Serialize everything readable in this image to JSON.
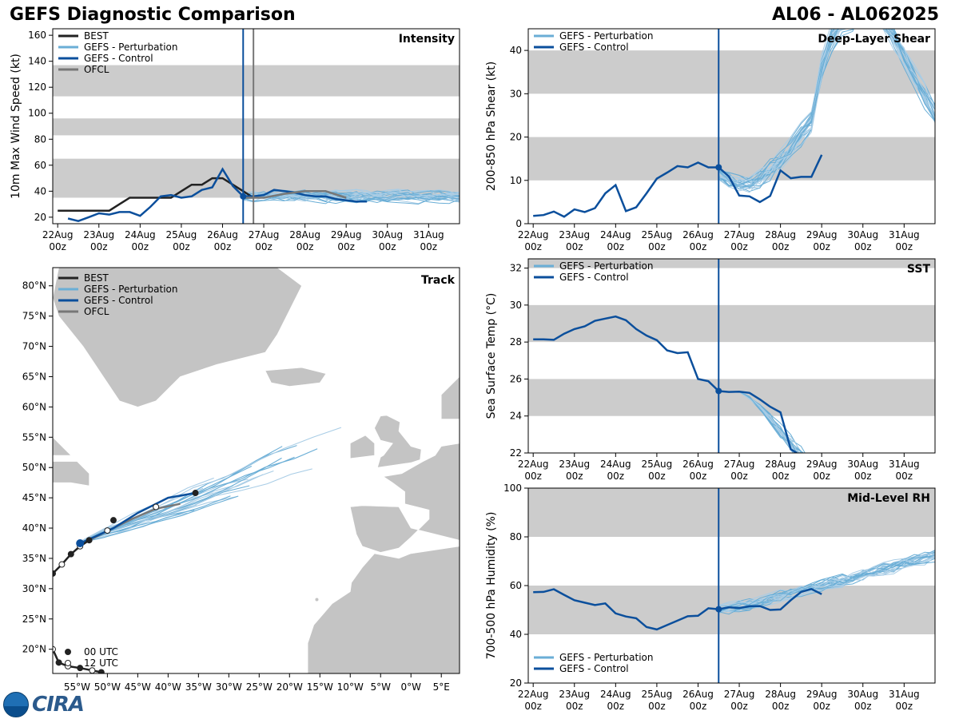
{
  "header": {
    "title": "GEFS Diagnostic Comparison",
    "storm_id": "AL06 - AL062025"
  },
  "logo": {
    "text": "CIRA",
    "noaa_icon": "noaa-logo-icon"
  },
  "colors": {
    "best": "#222222",
    "ensemble": "#6aaed6",
    "ensemble_light": "#a9cde6",
    "control": "#0b4f9c",
    "ofcl": "#777777",
    "band": "#cccccc",
    "land": "#c4c4c4"
  },
  "chart_data": [
    {
      "id": "intensity",
      "type": "line",
      "title": "Intensity",
      "ylabel": "10m Max Wind Speed (kt)",
      "ylim": [
        15,
        165
      ],
      "yticks": [
        20,
        40,
        60,
        80,
        100,
        120,
        140,
        160
      ],
      "bands": [
        [
          35,
          65
        ],
        [
          83,
          96
        ],
        [
          113,
          137
        ]
      ],
      "xticks": [
        "22Aug\n00z",
        "23Aug\n00z",
        "24Aug\n00z",
        "25Aug\n00z",
        "26Aug\n00z",
        "27Aug\n00z",
        "28Aug\n00z",
        "29Aug\n00z",
        "30Aug\n00z",
        "31Aug\n00z"
      ],
      "xlim_days": [
        -0.12,
        9.75
      ],
      "vlines": [
        {
          "x": 4.5,
          "color": "#0b4f9c"
        },
        {
          "x": 4.75,
          "color": "#777777"
        }
      ],
      "legend": [
        "BEST",
        "GEFS - Perturbation",
        "GEFS - Control",
        "OFCL"
      ],
      "series": [
        {
          "name": "BEST",
          "values": [
            [
              0,
              25
            ],
            [
              0.25,
              25
            ],
            [
              0.5,
              25
            ],
            [
              0.75,
              25
            ],
            [
              1,
              25
            ],
            [
              1.25,
              25
            ],
            [
              1.5,
              30
            ],
            [
              1.75,
              35
            ],
            [
              2,
              35
            ],
            [
              2.25,
              35
            ],
            [
              2.5,
              35
            ],
            [
              2.75,
              35
            ],
            [
              3,
              40
            ],
            [
              3.25,
              45
            ],
            [
              3.5,
              45
            ],
            [
              3.75,
              50
            ],
            [
              4,
              50
            ],
            [
              4.25,
              45
            ],
            [
              4.5,
              40
            ],
            [
              4.75,
              35
            ]
          ]
        },
        {
          "name": "GEFS - Control",
          "values": [
            [
              0.25,
              19
            ],
            [
              0.5,
              17
            ],
            [
              0.75,
              20
            ],
            [
              1,
              23
            ],
            [
              1.25,
              22
            ],
            [
              1.5,
              24
            ],
            [
              1.75,
              24
            ],
            [
              2,
              21
            ],
            [
              2.25,
              28
            ],
            [
              2.5,
              36
            ],
            [
              2.75,
              37
            ],
            [
              3,
              35
            ],
            [
              3.25,
              36
            ],
            [
              3.5,
              41
            ],
            [
              3.75,
              43
            ],
            [
              4,
              57
            ],
            [
              4.25,
              44
            ],
            [
              4.5,
              36
            ],
            [
              4.75,
              36
            ],
            [
              5,
              37
            ],
            [
              5.25,
              41
            ],
            [
              5.5,
              40
            ],
            [
              5.75,
              39
            ],
            [
              6,
              37
            ],
            [
              6.25,
              36
            ],
            [
              6.5,
              36
            ],
            [
              6.75,
              34
            ],
            [
              7,
              33
            ],
            [
              7.25,
              32
            ],
            [
              7.5,
              32
            ]
          ]
        },
        {
          "name": "OFCL",
          "values": [
            [
              4.5,
              35
            ],
            [
              4.75,
              35
            ],
            [
              5,
              35
            ],
            [
              5.5,
              38
            ],
            [
              6,
              40
            ],
            [
              6.5,
              40
            ],
            [
              7,
              35
            ]
          ]
        }
      ]
    },
    {
      "id": "shear",
      "type": "line",
      "title": "Deep-Layer Shear",
      "ylabel": "200-850 hPa Shear (kt)",
      "ylim": [
        0,
        45
      ],
      "yticks": [
        0,
        10,
        20,
        30,
        40
      ],
      "bands": [
        [
          10,
          20
        ],
        [
          30,
          40
        ]
      ],
      "xlim_days": [
        -0.12,
        9.75
      ],
      "legend": [
        "GEFS - Perturbation",
        "GEFS - Control"
      ],
      "series": [
        {
          "name": "GEFS - Control",
          "values": [
            [
              0,
              1.8
            ],
            [
              0.25,
              2
            ],
            [
              0.5,
              2.8
            ],
            [
              0.75,
              1.6
            ],
            [
              1,
              3.3
            ],
            [
              1.25,
              2.7
            ],
            [
              1.5,
              3.6
            ],
            [
              1.75,
              7
            ],
            [
              2,
              8.9
            ],
            [
              2.25,
              2.9
            ],
            [
              2.5,
              3.8
            ],
            [
              2.75,
              7
            ],
            [
              3,
              10.4
            ],
            [
              3.25,
              11.8
            ],
            [
              3.5,
              13.3
            ],
            [
              3.75,
              13
            ],
            [
              4,
              14.1
            ],
            [
              4.25,
              13
            ],
            [
              4.5,
              13
            ],
            [
              4.75,
              10.9
            ],
            [
              5,
              6.5
            ],
            [
              5.25,
              6.3
            ],
            [
              5.5,
              5
            ],
            [
              5.75,
              6.4
            ],
            [
              6,
              12.3
            ],
            [
              6.25,
              10.5
            ],
            [
              6.5,
              10.8
            ],
            [
              6.75,
              10.8
            ],
            [
              7,
              15.9
            ]
          ]
        }
      ]
    },
    {
      "id": "sst",
      "type": "line",
      "title": "SST",
      "ylabel": "Sea Surface Temp (°C)",
      "ylim": [
        22,
        32.5
      ],
      "yticks": [
        22,
        24,
        26,
        28,
        30,
        32
      ],
      "bands": [
        [
          24,
          26
        ],
        [
          28,
          30
        ],
        [
          32,
          33
        ]
      ],
      "xlim_days": [
        -0.12,
        9.75
      ],
      "legend": [
        "GEFS - Perturbation",
        "GEFS - Control"
      ],
      "series": [
        {
          "name": "GEFS - Control",
          "values": [
            [
              0,
              28.15
            ],
            [
              0.25,
              28.15
            ],
            [
              0.5,
              28.12
            ],
            [
              0.75,
              28.45
            ],
            [
              1,
              28.7
            ],
            [
              1.25,
              28.85
            ],
            [
              1.5,
              29.15
            ],
            [
              1.75,
              29.27
            ],
            [
              2,
              29.38
            ],
            [
              2.25,
              29.18
            ],
            [
              2.5,
              28.7
            ],
            [
              2.75,
              28.35
            ],
            [
              3,
              28.1
            ],
            [
              3.25,
              27.55
            ],
            [
              3.5,
              27.4
            ],
            [
              3.75,
              27.45
            ],
            [
              4,
              26
            ],
            [
              4.25,
              25.88
            ],
            [
              4.5,
              25.35
            ],
            [
              4.75,
              25.3
            ],
            [
              5,
              25.32
            ],
            [
              5.25,
              25.25
            ],
            [
              5.5,
              24.9
            ],
            [
              5.75,
              24.5
            ],
            [
              6,
              24.2
            ],
            [
              6.25,
              22.2
            ],
            [
              6.4,
              22
            ]
          ]
        }
      ]
    },
    {
      "id": "rh",
      "type": "line",
      "title": "Mid-Level RH",
      "ylabel": "700-500 hPa Humidity (%)",
      "ylim": [
        20,
        100
      ],
      "yticks": [
        20,
        40,
        60,
        80,
        100
      ],
      "bands": [
        [
          40,
          60
        ],
        [
          80,
          100
        ]
      ],
      "xlim_days": [
        -0.12,
        9.75
      ],
      "legend": [
        "GEFS - Perturbation",
        "GEFS - Control"
      ],
      "series": [
        {
          "name": "GEFS - Control",
          "values": [
            [
              0,
              57.3
            ],
            [
              0.25,
              57.4
            ],
            [
              0.5,
              58.5
            ],
            [
              0.75,
              56.2
            ],
            [
              1,
              54
            ],
            [
              1.25,
              53
            ],
            [
              1.5,
              52
            ],
            [
              1.75,
              52.7
            ],
            [
              2,
              48.6
            ],
            [
              2.25,
              47.3
            ],
            [
              2.5,
              46.6
            ],
            [
              2.75,
              43
            ],
            [
              3,
              42
            ],
            [
              3.25,
              43.8
            ],
            [
              3.5,
              45.6
            ],
            [
              3.75,
              47.4
            ],
            [
              4,
              47.6
            ],
            [
              4.25,
              50.7
            ],
            [
              4.5,
              50.3
            ],
            [
              4.75,
              51.1
            ],
            [
              5,
              50.8
            ],
            [
              5.25,
              51.5
            ],
            [
              5.5,
              51.6
            ],
            [
              5.75,
              50
            ],
            [
              6,
              50.2
            ],
            [
              6.25,
              54
            ],
            [
              6.5,
              57.4
            ],
            [
              6.75,
              58.6
            ],
            [
              7,
              56.5
            ]
          ]
        }
      ]
    },
    {
      "id": "track",
      "type": "map",
      "title": "Track",
      "legend": [
        "BEST",
        "GEFS - Perturbation",
        "GEFS - Control",
        "OFCL"
      ],
      "time_legend": [
        "00 UTC",
        "12 UTC"
      ],
      "lon_range": [
        -59,
        8
      ],
      "lat_range": [
        16,
        83
      ],
      "lon_ticks": [
        "55°W",
        "50°W",
        "45°W",
        "40°W",
        "35°W",
        "30°W",
        "25°W",
        "20°W",
        "15°W",
        "10°W",
        "5°W",
        "0°W",
        "5°E"
      ],
      "lat_ticks": [
        "20°N",
        "25°N",
        "30°N",
        "35°N",
        "40°N",
        "45°N",
        "50°N",
        "55°N",
        "60°N",
        "65°N",
        "70°N",
        "75°N",
        "80°N"
      ],
      "best_track": [
        [
          -59,
          32.5
        ],
        [
          -57.5,
          34
        ],
        [
          -56,
          35.7
        ],
        [
          -54.5,
          37
        ],
        [
          -53,
          38
        ]
      ],
      "best_track_south": [
        [
          -59,
          20
        ],
        [
          -58,
          17.8
        ],
        [
          -56.5,
          17.2
        ],
        [
          -54.5,
          16.9
        ],
        [
          -52.5,
          16.5
        ],
        [
          -51,
          16.2
        ]
      ],
      "control_track": [
        [
          -54.5,
          37.5
        ],
        [
          -52,
          38.6
        ],
        [
          -49,
          40
        ],
        [
          -45,
          42.5
        ],
        [
          -42,
          44
        ],
        [
          -40,
          45
        ],
        [
          -35.5,
          45.8
        ]
      ],
      "ofcl_track": [
        [
          -53,
          38
        ],
        [
          -50,
          39.5
        ],
        [
          -46,
          41.5
        ],
        [
          -42,
          43.2
        ],
        [
          -38,
          44
        ]
      ]
    }
  ]
}
